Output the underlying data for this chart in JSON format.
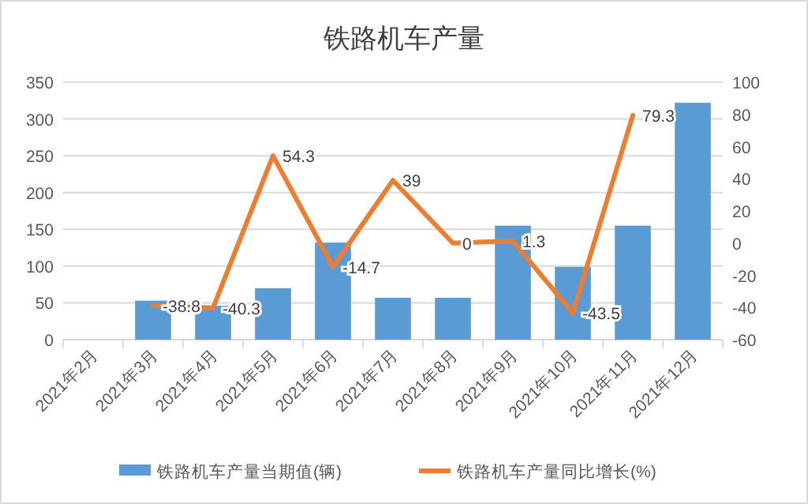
{
  "chart_data": {
    "type": "bar",
    "title": "铁路机车产量",
    "categories": [
      "2021年2月",
      "2021年3月",
      "2021年4月",
      "2021年5月",
      "2021年6月",
      "2021年7月",
      "2021年8月",
      "2021年9月",
      "2021年10月",
      "2021年11月",
      "2021年12月"
    ],
    "series": [
      {
        "name": "铁路机车产量当期值(辆)",
        "color": "#5b9bd5",
        "values": [
          null,
          53,
          46,
          70,
          132,
          57,
          57,
          155,
          99,
          155,
          322
        ]
      },
      {
        "name": "铁路机车产量同比增长(%)",
        "color": "#ed7d31",
        "type": "line",
        "axis": "y2",
        "values": [
          null,
          -38.8,
          -40.3,
          54.3,
          -14.7,
          39,
          0,
          1.3,
          -43.5,
          79.3,
          null
        ],
        "value_labels": [
          null,
          "-38.8",
          "-40.3",
          "54.3",
          "-14.7",
          "39",
          "0",
          "1.3",
          "-43.5",
          "79.3",
          null
        ]
      }
    ],
    "ylim": [
      0,
      350
    ],
    "yticks": [
      0,
      50,
      100,
      150,
      200,
      250,
      300,
      350
    ],
    "y2lim": [
      -60,
      100
    ],
    "y2ticks": [
      -60,
      -40,
      -20,
      0,
      20,
      40,
      60,
      80,
      100
    ],
    "grid": "y",
    "legend": "bottom",
    "marker": "none"
  }
}
